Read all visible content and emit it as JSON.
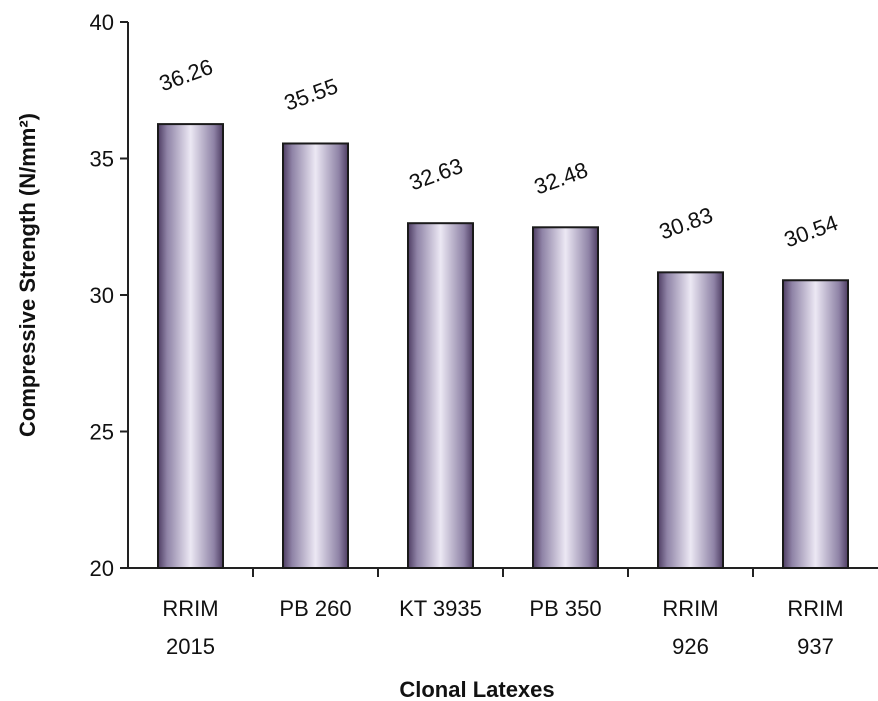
{
  "chart_data": {
    "type": "bar",
    "categories": [
      [
        "RRIM",
        "2015"
      ],
      [
        "PB 260"
      ],
      [
        "KT 3935"
      ],
      [
        "PB 350"
      ],
      [
        "RRIM",
        "926"
      ],
      [
        "RRIM",
        "937"
      ]
    ],
    "values": [
      36.26,
      35.55,
      32.63,
      32.48,
      30.83,
      30.54
    ],
    "data_labels": [
      "36.26",
      "35.55",
      "32.63",
      "32.48",
      "30.83",
      "30.54"
    ],
    "xlabel": "Clonal Latexes",
    "ylabel": "Compressive Strength (N/mm²)",
    "ylim": [
      20,
      40
    ],
    "yticks": [
      "20",
      "25",
      "30",
      "35",
      "40"
    ],
    "grid": false,
    "legend": "none",
    "bar_color": "#d9d3e8",
    "bar_edge_color": "#1a1a1a"
  }
}
